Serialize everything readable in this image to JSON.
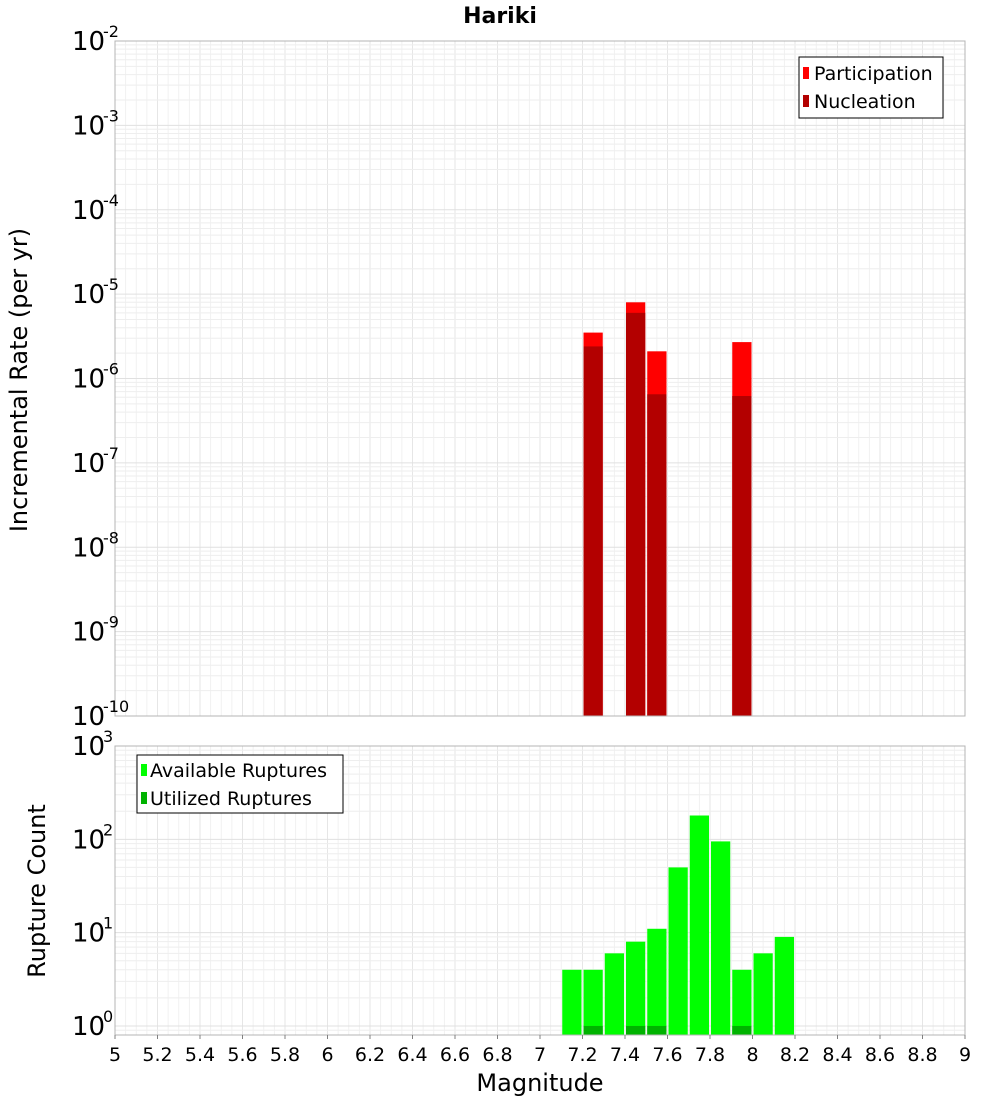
{
  "title": "Hariki",
  "chart_data": [
    {
      "type": "bar",
      "name": "rate-panel",
      "ylabel": "Incremental Rate (per yr)",
      "yscale": "log",
      "ylim": [
        1e-10,
        0.01
      ],
      "ytick_exponents": [
        "-2",
        "-3",
        "-4",
        "-5",
        "-6",
        "-7",
        "-8",
        "-9",
        "-10"
      ],
      "ytick_base": "10",
      "xlim": [
        5,
        9
      ],
      "bin_width": 0.1,
      "legend_position": "top-right",
      "series": [
        {
          "name": "Participation",
          "color": "#ff0000",
          "x": [
            7.25,
            7.45,
            7.55,
            7.95
          ],
          "values": [
            3.5e-06,
            8e-06,
            2.1e-06,
            2.7e-06
          ]
        },
        {
          "name": "Nucleation",
          "color": "#b30000",
          "x": [
            7.25,
            7.45,
            7.55,
            7.95
          ],
          "values": [
            2.4e-06,
            6e-06,
            6.5e-07,
            6.2e-07
          ]
        }
      ]
    },
    {
      "type": "bar",
      "name": "count-panel",
      "ylabel": "Rupture Count",
      "xlabel": "Magnitude",
      "yscale": "log",
      "ylim": [
        0.8,
        1000
      ],
      "ytick_exponents": [
        "3",
        "2",
        "1",
        "0"
      ],
      "ytick_base": "10",
      "xlim": [
        5,
        9
      ],
      "bin_width": 0.1,
      "x_ticks": [
        "5",
        "5.2",
        "5.4",
        "5.6",
        "5.8",
        "6",
        "6.2",
        "6.4",
        "6.6",
        "6.8",
        "7",
        "7.2",
        "7.4",
        "7.6",
        "7.8",
        "8",
        "8.2",
        "8.4",
        "8.6",
        "8.8",
        "9"
      ],
      "legend_position": "top-left",
      "series": [
        {
          "name": "Available Ruptures",
          "color": "#00ff00",
          "x": [
            7.15,
            7.25,
            7.35,
            7.45,
            7.55,
            7.65,
            7.75,
            7.85,
            7.95,
            8.05,
            8.15
          ],
          "values": [
            4,
            4,
            6,
            8,
            11,
            50,
            180,
            95,
            4,
            6,
            9
          ]
        },
        {
          "name": "Utilized Ruptures",
          "color": "#00b300",
          "x": [
            7.25,
            7.45,
            7.55,
            7.95
          ],
          "values": [
            1,
            1,
            1,
            1
          ]
        }
      ]
    }
  ]
}
